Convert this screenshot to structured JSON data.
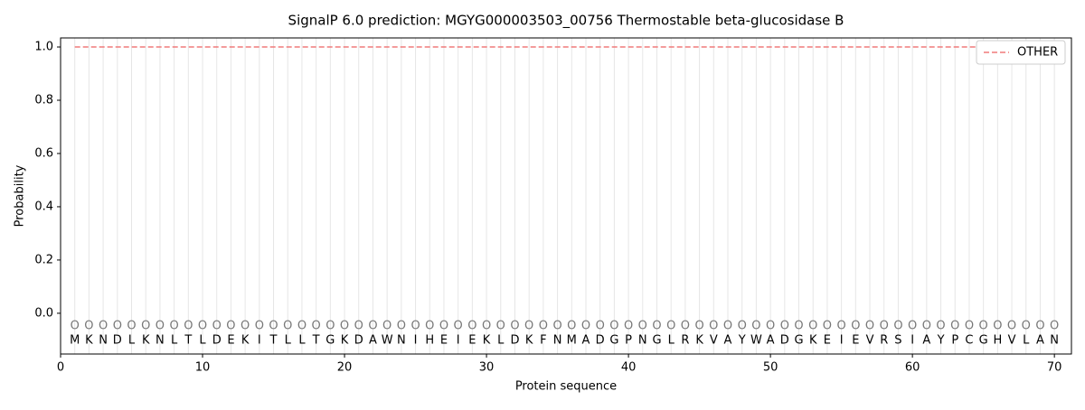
{
  "chart_data": {
    "type": "line",
    "title": "SignalP 6.0 prediction: MGYG000003503_00756 Thermostable beta-glucosidase B",
    "x_label": "Protein sequence",
    "y_label": "Probability",
    "x": [
      1,
      2,
      3,
      4,
      5,
      6,
      7,
      8,
      9,
      10,
      11,
      12,
      13,
      14,
      15,
      16,
      17,
      18,
      19,
      20,
      21,
      22,
      23,
      24,
      25,
      26,
      27,
      28,
      29,
      30,
      31,
      32,
      33,
      34,
      35,
      36,
      37,
      38,
      39,
      40,
      41,
      42,
      43,
      44,
      45,
      46,
      47,
      48,
      49,
      50,
      51,
      52,
      53,
      54,
      55,
      56,
      57,
      58,
      59,
      60,
      61,
      62,
      63,
      64,
      65,
      66,
      67,
      68,
      69,
      70
    ],
    "sequence": [
      "M",
      "K",
      "N",
      "D",
      "L",
      "K",
      "N",
      "L",
      "T",
      "L",
      "D",
      "E",
      "K",
      "I",
      "T",
      "L",
      "L",
      "T",
      "G",
      "K",
      "D",
      "A",
      "W",
      "N",
      "I",
      "H",
      "E",
      "I",
      "E",
      "K",
      "L",
      "D",
      "K",
      "F",
      "N",
      "M",
      "A",
      "D",
      "G",
      "P",
      "N",
      "G",
      "L",
      "R",
      "K",
      "V",
      "A",
      "Y",
      "W",
      "A",
      "D",
      "G",
      "K",
      "E",
      "I",
      "E",
      "V",
      "R",
      "S",
      "I",
      "A",
      "Y",
      "P",
      "C",
      "G",
      "H",
      "V",
      "L",
      "A",
      "N"
    ],
    "region_labels": [
      "O",
      "O",
      "O",
      "O",
      "O",
      "O",
      "O",
      "O",
      "O",
      "O",
      "O",
      "O",
      "O",
      "O",
      "O",
      "O",
      "O",
      "O",
      "O",
      "O",
      "O",
      "O",
      "O",
      "O",
      "O",
      "O",
      "O",
      "O",
      "O",
      "O",
      "O",
      "O",
      "O",
      "O",
      "O",
      "O",
      "O",
      "O",
      "O",
      "O",
      "O",
      "O",
      "O",
      "O",
      "O",
      "O",
      "O",
      "O",
      "O",
      "O",
      "O",
      "O",
      "O",
      "O",
      "O",
      "O",
      "O",
      "O",
      "O",
      "O",
      "O",
      "O",
      "O",
      "O",
      "O",
      "O",
      "O",
      "O",
      "O",
      "O"
    ],
    "series": [
      {
        "name": "OTHER",
        "color": "#f07a7a",
        "dashed": true,
        "values": [
          1,
          1,
          1,
          1,
          1,
          1,
          1,
          1,
          1,
          1,
          1,
          1,
          1,
          1,
          1,
          1,
          1,
          1,
          1,
          1,
          1,
          1,
          1,
          1,
          1,
          1,
          1,
          1,
          1,
          1,
          1,
          1,
          1,
          1,
          1,
          1,
          1,
          1,
          1,
          1,
          1,
          1,
          1,
          1,
          1,
          1,
          1,
          1,
          1,
          1,
          1,
          1,
          1,
          1,
          1,
          1,
          1,
          1,
          1,
          1,
          1,
          1,
          1,
          1,
          1,
          1,
          1,
          1,
          1,
          1
        ]
      }
    ],
    "xlim": [
      0,
      71.2
    ],
    "ylim": [
      -0.153,
      1.034
    ],
    "xticks": [
      0,
      10,
      20,
      30,
      40,
      50,
      60,
      70
    ],
    "yticks": [
      {
        "value": 0,
        "label": "0.0"
      },
      {
        "value": 0.2,
        "label": "0.2"
      },
      {
        "value": 0.4,
        "label": "0.4"
      },
      {
        "value": 0.6,
        "label": "0.6"
      },
      {
        "value": 0.8,
        "label": "0.8"
      },
      {
        "value": 1,
        "label": "1.0"
      }
    ],
    "legend": "upper right"
  }
}
